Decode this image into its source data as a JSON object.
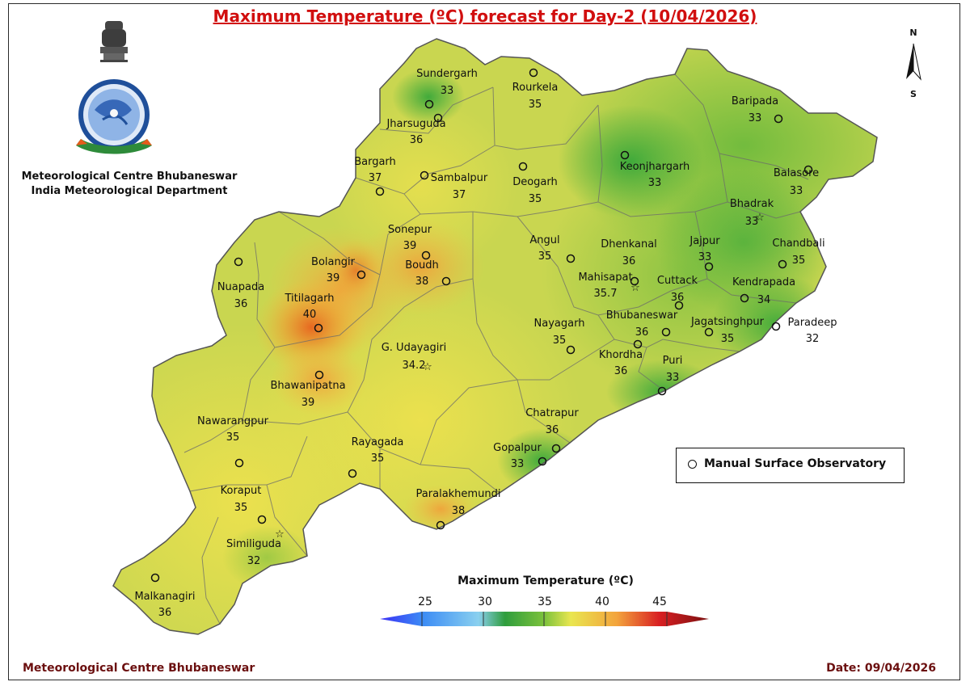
{
  "title": "Maximum Temperature (ºC) forecast for Day-2 (10/04/2026)",
  "org": {
    "line1": "Meteorological Centre Bhubaneswar",
    "line2": "India Meteorological Department"
  },
  "footer": {
    "left": "Meteorological Centre Bhubaneswar",
    "right": "Date: 09/04/2026"
  },
  "north_arrow": {
    "n": "N",
    "s": "S"
  },
  "legend": {
    "label": "Manual Surface Observatory"
  },
  "colorbar": {
    "title": "Maximum Temperature (ºC)",
    "ticks": [
      "25",
      "30",
      "35",
      "40",
      "45"
    ]
  },
  "stations": [
    {
      "name": "Sundergarh",
      "value": "33",
      "marker": "circle"
    },
    {
      "name": "Rourkela",
      "value": "35",
      "marker": "circle"
    },
    {
      "name": "Jharsuguda",
      "value": "36",
      "marker": "circle"
    },
    {
      "name": "Bargarh",
      "value": "37",
      "marker": "circle"
    },
    {
      "name": "Sambalpur",
      "value": "37",
      "marker": "circle"
    },
    {
      "name": "Deogarh",
      "value": "35",
      "marker": "circle"
    },
    {
      "name": "Keonjhargarh",
      "value": "33",
      "marker": "circle"
    },
    {
      "name": "Baripada",
      "value": "33",
      "marker": "circle"
    },
    {
      "name": "Balasore",
      "value": "33",
      "marker": "circle"
    },
    {
      "name": "Bhadrak",
      "value": "33",
      "marker": "star"
    },
    {
      "name": "Chandbali",
      "value": "35",
      "marker": "circle"
    },
    {
      "name": "Jajpur",
      "value": "33",
      "marker": "circle"
    },
    {
      "name": "Kendrapada",
      "value": "34",
      "marker": "circle"
    },
    {
      "name": "Paradeep",
      "value": "32",
      "marker": "circle"
    },
    {
      "name": "Jagatsinghpur",
      "value": "35",
      "marker": "circle"
    },
    {
      "name": "Cuttack",
      "value": "36",
      "marker": "circle"
    },
    {
      "name": "Dhenkanal",
      "value": "36",
      "marker": "circle"
    },
    {
      "name": "Mahisapat",
      "value": "35.7",
      "marker": "star"
    },
    {
      "name": "Angul",
      "value": "35",
      "marker": "circle"
    },
    {
      "name": "Bhubaneswar",
      "value": "36",
      "marker": "circle"
    },
    {
      "name": "Khordha",
      "value": "36",
      "marker": "circle"
    },
    {
      "name": "Puri",
      "value": "33",
      "marker": "circle"
    },
    {
      "name": "Nayagarh",
      "value": "35",
      "marker": "circle"
    },
    {
      "name": "Sonepur",
      "value": "39",
      "marker": "circle"
    },
    {
      "name": "Boudh",
      "value": "38",
      "marker": "circle"
    },
    {
      "name": "Bolangir",
      "value": "39",
      "marker": "circle"
    },
    {
      "name": "Titilagarh",
      "value": "40",
      "marker": "circle"
    },
    {
      "name": "Nuapada",
      "value": "36",
      "marker": "circle"
    },
    {
      "name": "G. Udayagiri",
      "value": "34.2",
      "marker": "star"
    },
    {
      "name": "Bhawanipatna",
      "value": "39",
      "marker": "circle"
    },
    {
      "name": "Nawarangpur",
      "value": "35",
      "marker": "circle"
    },
    {
      "name": "Rayagada",
      "value": "35",
      "marker": "circle"
    },
    {
      "name": "Koraput",
      "value": "35",
      "marker": "circle"
    },
    {
      "name": "Similiguda",
      "value": "32",
      "marker": "star"
    },
    {
      "name": "Malkanagiri",
      "value": "36",
      "marker": "circle"
    },
    {
      "name": "Chatrapur",
      "value": "36",
      "marker": "circle"
    },
    {
      "name": "Gopalpur",
      "value": "33",
      "marker": "circle"
    },
    {
      "name": "Paralakhemundi",
      "value": "38",
      "marker": "circle"
    }
  ]
}
